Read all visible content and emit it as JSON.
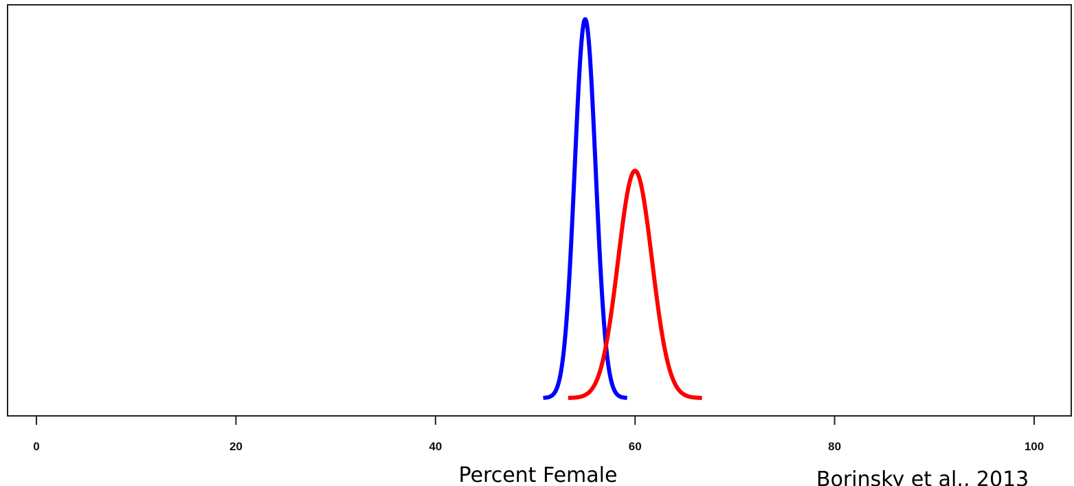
{
  "chart_data": {
    "type": "line",
    "xlabel": "Percent Female",
    "ylabel": "",
    "xlim": [
      0,
      100
    ],
    "xticks": [
      0,
      20,
      40,
      60,
      80,
      100
    ],
    "grid": false,
    "legend": "none",
    "citation": "Borinsky et al., 2013",
    "series": [
      {
        "color": "#0000ff",
        "mean": 55,
        "sd": 1.05,
        "peak": 1.0,
        "x_range": [
          51,
          59
        ]
      },
      {
        "color": "#ff0000",
        "mean": 60,
        "sd": 1.7,
        "peak": 0.6,
        "x_range": [
          53.5,
          66.5
        ]
      }
    ]
  }
}
